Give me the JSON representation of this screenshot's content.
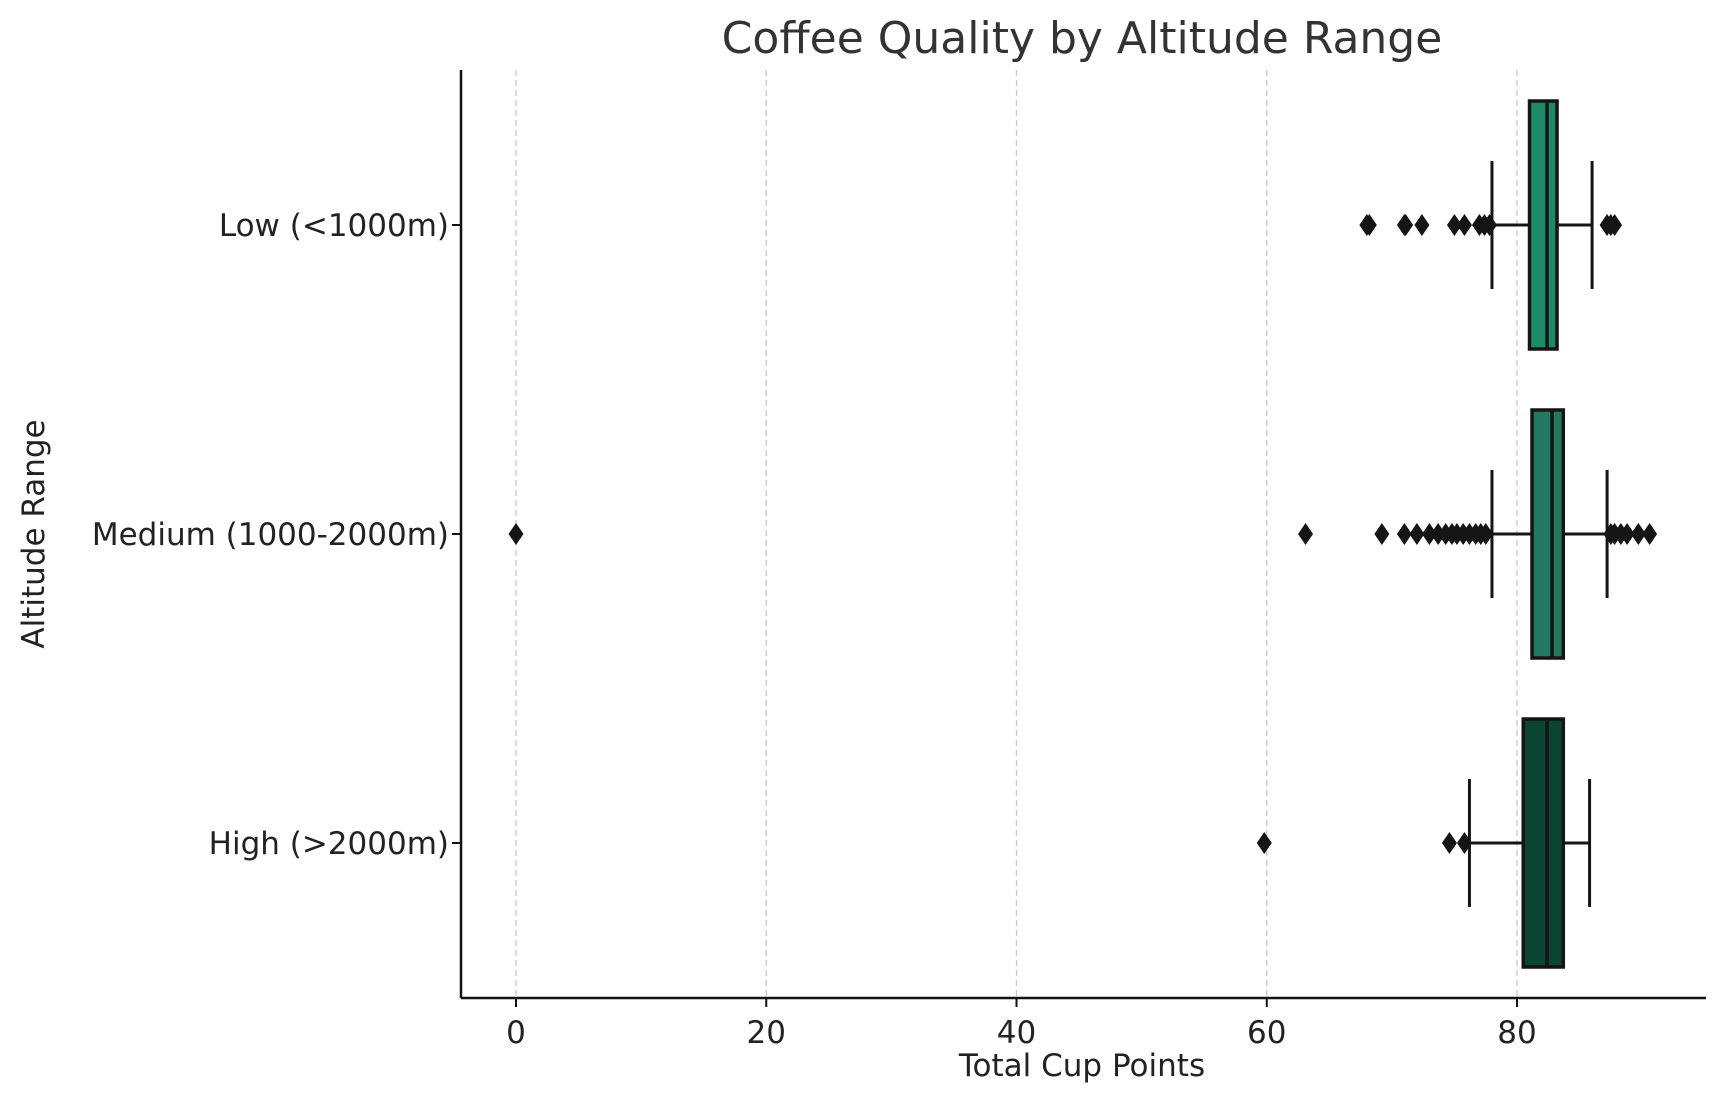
{
  "chart_data": {
    "type": "boxplot",
    "title": "Coffee Quality by Altitude Range",
    "xlabel": "Total Cup Points",
    "ylabel": "Altitude Range",
    "xlim": [
      -2.2,
      94.7
    ],
    "xticks": [
      0,
      20,
      40,
      60,
      80
    ],
    "grid": "x-dashed",
    "categories": [
      "Low (<1000m)",
      "Medium (1000-2000m)",
      "High (>2000m)"
    ],
    "boxes": [
      {
        "category": "Low (<1000m)",
        "color": "#1f8a69",
        "whisker_low": 78.0,
        "q1": 81.0,
        "median": 82.4,
        "q3": 83.2,
        "whisker_high": 86.0,
        "outliers": [
          68.0,
          68.2,
          71.0,
          71.1,
          72.4,
          75.0,
          75.8,
          77.0,
          77.4,
          77.8,
          87.2,
          87.5,
          87.8
        ]
      },
      {
        "category": "Medium (1000-2000m)",
        "color": "#237960",
        "whisker_low": 78.0,
        "q1": 81.2,
        "median": 82.8,
        "q3": 83.7,
        "whisker_high": 87.2,
        "outliers": [
          0.0,
          63.1,
          69.2,
          71.0,
          72.0,
          73.0,
          73.7,
          74.3,
          74.8,
          75.2,
          75.7,
          76.2,
          76.7,
          77.1,
          77.5,
          87.5,
          87.8,
          88.3,
          88.8,
          89.7,
          90.6
        ]
      },
      {
        "category": "High (>2000m)",
        "color": "#0a4435",
        "whisker_low": 76.2,
        "q1": 80.5,
        "median": 82.4,
        "q3": 83.7,
        "whisker_high": 85.8,
        "outliers": [
          59.8,
          74.6,
          75.8
        ]
      }
    ]
  }
}
